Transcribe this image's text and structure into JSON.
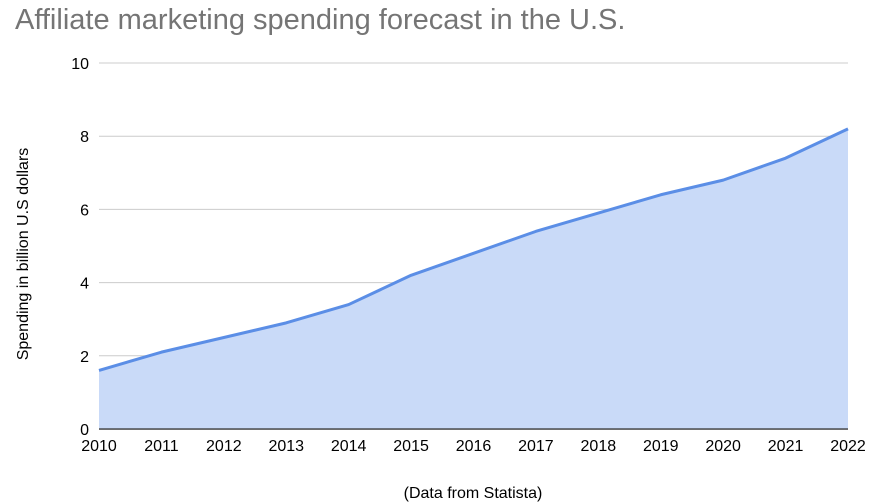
{
  "chart_data": {
    "type": "area",
    "title": "Affiliate marketing spending forecast in the U.S.",
    "xlabel": "(Data from Statista)",
    "ylabel": "Spending in billion U.S dollars",
    "x": [
      "2010",
      "2011",
      "2012",
      "2013",
      "2014",
      "2015",
      "2016",
      "2017",
      "2018",
      "2019",
      "2020",
      "2021",
      "2022"
    ],
    "y_ticks": [
      "0",
      "2",
      "4",
      "6",
      "8",
      "10"
    ],
    "series": [
      {
        "values": [
          1.6,
          2.1,
          2.5,
          2.9,
          3.4,
          4.2,
          4.8,
          5.4,
          5.9,
          6.4,
          6.8,
          7.4,
          8.2
        ]
      }
    ],
    "ylim": [
      0,
      10
    ],
    "grid": true,
    "colors": {
      "line": "#5b8ee6",
      "fill": "#c9daf8",
      "grid": "#cccccc",
      "title": "#757575"
    }
  }
}
